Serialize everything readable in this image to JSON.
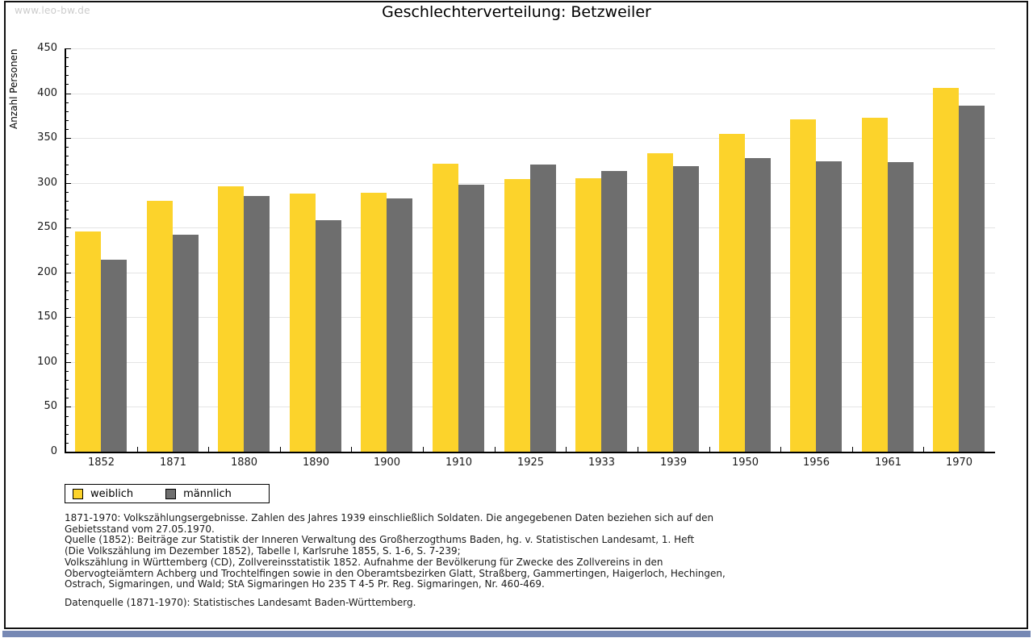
{
  "watermark": "www.leo-bw.de",
  "title": "Geschlechterverteilung: Betzweiler",
  "chart_data": {
    "type": "bar",
    "title": "Geschlechterverteilung: Betzweiler",
    "xlabel": "",
    "ylabel": "Anzahl Personen",
    "ylim": [
      0,
      450
    ],
    "y_major_step": 50,
    "y_minor_step": 10,
    "grid": true,
    "legend_position": "bottom-left",
    "categories": [
      "1852",
      "1871",
      "1880",
      "1890",
      "1900",
      "1910",
      "1925",
      "1933",
      "1939",
      "1950",
      "1956",
      "1961",
      "1970"
    ],
    "series": [
      {
        "name": "weiblich",
        "color": "#FCD32B",
        "values": [
          246,
          280,
          296,
          288,
          289,
          321,
          304,
          305,
          333,
          355,
          371,
          373,
          406
        ]
      },
      {
        "name": "männlich",
        "color": "#6E6E6E",
        "values": [
          214,
          242,
          285,
          258,
          283,
          298,
          320,
          313,
          319,
          328,
          324,
          323,
          386
        ]
      }
    ]
  },
  "colors": {
    "grid": "#E4E4E4",
    "axis": "#000000",
    "watermark": "#CCCCCC",
    "bottom_bar": "#7688B4"
  },
  "footer": {
    "lines": [
      "1871-1970: Volkszählungsergebnisse. Zahlen des Jahres 1939 einschließlich Soldaten. Die angegebenen Daten beziehen sich auf den",
      "Gebietsstand vom 27.05.1970.",
      "Quelle (1852): Beiträge zur Statistik der Inneren Verwaltung des Großherzogthums Baden, hg. v. Statistischen Landesamt, 1. Heft",
      "(Die Volkszählung im Dezember 1852), Tabelle I, Karlsruhe 1855, S. 1-6, S. 7-239;",
      "Volkszählung in Württemberg (CD), Zollvereinsstatistik 1852. Aufnahme der Bevölkerung für Zwecke des Zollvereins in den",
      "Obervogteiämtern Achberg und Trochtelfingen sowie in den Oberamtsbezirken Glatt, Straßberg, Gammertingen, Haigerloch, Hechingen,",
      "Ostrach, Sigmaringen, und Wald; StA Sigmaringen Ho 235 T 4-5 Pr. Reg. Sigmaringen, Nr. 460-469."
    ],
    "datasource": "Datenquelle (1871-1970): Statistisches Landesamt Baden-Württemberg."
  }
}
